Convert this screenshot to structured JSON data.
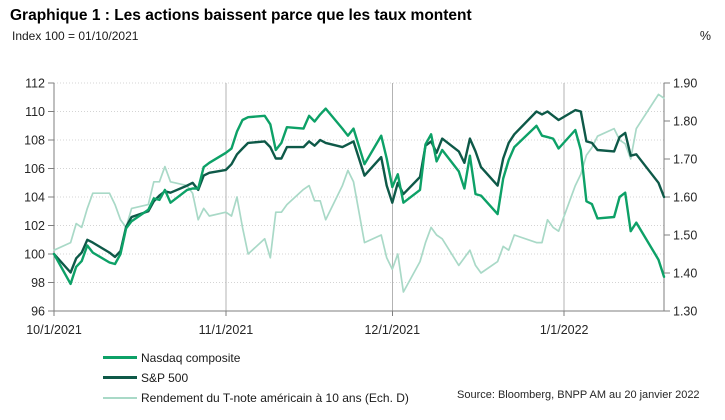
{
  "header": {
    "title": "Graphique 1 : Les actions baissent parce que les taux montent",
    "subtitle_left": "Index 100 = 01/10/2021",
    "subtitle_right": "%"
  },
  "footer": {
    "source": "Source: Bloomberg, BNPP AM au 20 janvier 2022"
  },
  "chart_data": {
    "type": "line",
    "legend_position": "bottom-left",
    "grid": {
      "horizontal": "dotted",
      "vertical_months": "solid"
    },
    "left_axis": {
      "min": 96,
      "max": 112,
      "step": 2,
      "ticks": [
        {
          "label": "112",
          "value": 112
        },
        {
          "label": "110",
          "value": 110
        },
        {
          "label": "108",
          "value": 108
        },
        {
          "label": "106",
          "value": 106
        },
        {
          "label": "104",
          "value": 104
        },
        {
          "label": "102",
          "value": 102
        },
        {
          "label": "100",
          "value": 100
        },
        {
          "label": "98",
          "value": 98
        },
        {
          "label": "96",
          "value": 96
        }
      ]
    },
    "right_axis": {
      "min": 1.3,
      "max": 1.9,
      "step": 0.1,
      "ticks": [
        {
          "label": "1.90",
          "value": 1.9
        },
        {
          "label": "1.80",
          "value": 1.8
        },
        {
          "label": "1.70",
          "value": 1.7
        },
        {
          "label": "1.60",
          "value": 1.6
        },
        {
          "label": "1.50",
          "value": 1.5
        },
        {
          "label": "1.40",
          "value": 1.4
        },
        {
          "label": "1.30",
          "value": 1.3
        }
      ]
    },
    "x_ticks": [
      {
        "label": "10/1/2021",
        "date": "2021-10-01"
      },
      {
        "label": "11/1/2021",
        "date": "2021-11-01"
      },
      {
        "label": "12/1/2021",
        "date": "2021-12-01"
      },
      {
        "label": "1/1/2022",
        "date": "2022-01-01"
      }
    ],
    "x_dates": [
      "2021-10-01",
      "2021-10-04",
      "2021-10-05",
      "2021-10-06",
      "2021-10-07",
      "2021-10-08",
      "2021-10-11",
      "2021-10-12",
      "2021-10-13",
      "2021-10-14",
      "2021-10-15",
      "2021-10-18",
      "2021-10-19",
      "2021-10-20",
      "2021-10-21",
      "2021-10-22",
      "2021-10-25",
      "2021-10-26",
      "2021-10-27",
      "2021-10-28",
      "2021-10-29",
      "2021-11-01",
      "2021-11-02",
      "2021-11-03",
      "2021-11-04",
      "2021-11-05",
      "2021-11-08",
      "2021-11-09",
      "2021-11-10",
      "2021-11-11",
      "2021-11-12",
      "2021-11-15",
      "2021-11-16",
      "2021-11-17",
      "2021-11-18",
      "2021-11-19",
      "2021-11-22",
      "2021-11-23",
      "2021-11-24",
      "2021-11-26",
      "2021-11-29",
      "2021-11-30",
      "2021-12-01",
      "2021-12-02",
      "2021-12-03",
      "2021-12-06",
      "2021-12-07",
      "2021-12-08",
      "2021-12-09",
      "2021-12-10",
      "2021-12-13",
      "2021-12-14",
      "2021-12-15",
      "2021-12-16",
      "2021-12-17",
      "2021-12-20",
      "2021-12-21",
      "2021-12-22",
      "2021-12-23",
      "2021-12-27",
      "2021-12-28",
      "2021-12-29",
      "2021-12-30",
      "2021-12-31",
      "2022-01-03",
      "2022-01-04",
      "2022-01-05",
      "2022-01-06",
      "2022-01-07",
      "2022-01-10",
      "2022-01-11",
      "2022-01-12",
      "2022-01-13",
      "2022-01-14",
      "2022-01-18",
      "2022-01-19"
    ],
    "series": [
      {
        "id": "nasdaq",
        "name": "Nasdaq composite",
        "axis": "left",
        "color": "#0da167",
        "line_width": 2.4,
        "values": [
          100.0,
          97.9,
          99.1,
          99.5,
          100.6,
          100.1,
          99.4,
          99.3,
          100.0,
          101.8,
          102.3,
          103.1,
          103.9,
          103.8,
          104.5,
          103.6,
          104.5,
          104.6,
          104.6,
          106.1,
          106.4,
          107.1,
          107.4,
          108.6,
          109.4,
          109.6,
          109.7,
          109.1,
          107.3,
          107.8,
          108.9,
          108.8,
          109.7,
          109.3,
          109.8,
          110.2,
          108.8,
          108.3,
          108.8,
          106.3,
          108.3,
          106.7,
          104.7,
          105.6,
          103.6,
          104.5,
          107.7,
          108.4,
          106.5,
          107.3,
          105.8,
          104.6,
          106.9,
          104.2,
          104.1,
          102.8,
          105.3,
          106.6,
          107.5,
          109.0,
          108.3,
          108.2,
          108.1,
          107.4,
          108.7,
          107.3,
          103.7,
          103.5,
          102.5,
          102.6,
          104.0,
          104.3,
          101.6,
          102.2,
          99.6,
          98.4
        ]
      },
      {
        "id": "sp500",
        "name": "S&P 500",
        "axis": "left",
        "color": "#0e5948",
        "line_width": 2.4,
        "values": [
          100.0,
          98.7,
          99.7,
          100.1,
          101.0,
          100.8,
          100.1,
          99.8,
          100.2,
          101.9,
          102.6,
          103.0,
          103.7,
          104.1,
          104.4,
          104.3,
          104.8,
          105.0,
          104.5,
          105.5,
          105.7,
          105.9,
          106.3,
          107.0,
          107.4,
          107.8,
          107.9,
          107.5,
          106.7,
          106.7,
          107.5,
          107.5,
          107.9,
          107.6,
          108.0,
          107.8,
          107.5,
          107.7,
          107.9,
          105.5,
          106.8,
          104.8,
          103.6,
          105.0,
          104.2,
          105.4,
          107.6,
          107.9,
          107.1,
          108.1,
          107.2,
          106.4,
          108.1,
          107.2,
          106.1,
          104.8,
          106.7,
          107.8,
          108.4,
          110.0,
          109.8,
          110.0,
          109.7,
          109.4,
          110.1,
          110.0,
          107.9,
          107.8,
          107.3,
          107.2,
          108.2,
          108.5,
          106.9,
          107.0,
          105.0,
          104.0
        ]
      },
      {
        "id": "tnote",
        "name": "Rendement du T-note américain à 10 ans (Ech. D)",
        "axis": "right",
        "color": "#a9d9c7",
        "line_width": 1.7,
        "values": [
          1.46,
          1.48,
          1.53,
          1.52,
          1.57,
          1.61,
          1.61,
          1.58,
          1.54,
          1.52,
          1.57,
          1.58,
          1.64,
          1.64,
          1.68,
          1.64,
          1.63,
          1.61,
          1.54,
          1.57,
          1.55,
          1.56,
          1.55,
          1.6,
          1.52,
          1.45,
          1.49,
          1.44,
          1.56,
          1.56,
          1.58,
          1.62,
          1.63,
          1.59,
          1.59,
          1.54,
          1.63,
          1.67,
          1.64,
          1.48,
          1.5,
          1.44,
          1.41,
          1.45,
          1.35,
          1.43,
          1.48,
          1.52,
          1.5,
          1.49,
          1.42,
          1.44,
          1.46,
          1.42,
          1.4,
          1.43,
          1.47,
          1.46,
          1.5,
          1.48,
          1.48,
          1.54,
          1.52,
          1.51,
          1.63,
          1.66,
          1.71,
          1.73,
          1.76,
          1.78,
          1.75,
          1.74,
          1.7,
          1.78,
          1.87,
          1.86
        ]
      }
    ],
    "colors": {
      "axis": "#7f7f7f",
      "v_gridline": "#b3b3b3",
      "h_gridline": "#d4d4d4"
    }
  }
}
